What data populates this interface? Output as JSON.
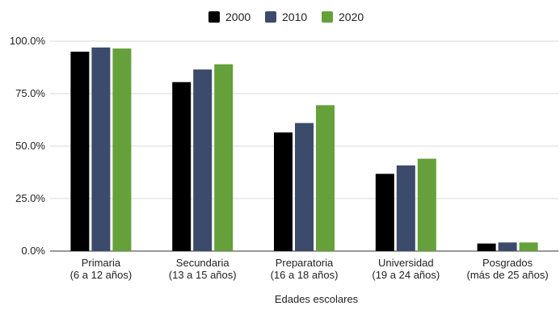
{
  "chart_data": {
    "type": "bar",
    "categories": [
      [
        "Primaria",
        "(6 a 12 años)"
      ],
      [
        "Secundaria",
        "(13 a 15 años)"
      ],
      [
        "Preparatoria",
        "(16 a 18 años)"
      ],
      [
        "Universidad",
        "(19 a 24 años)"
      ],
      [
        "Posgrados",
        "(más de 25 años)"
      ]
    ],
    "series": [
      {
        "name": "2000",
        "color": "#000000",
        "values": [
          95.0,
          80.5,
          56.5,
          36.8,
          3.6
        ]
      },
      {
        "name": "2010",
        "color": "#3c4a6b",
        "values": [
          97.0,
          86.5,
          61.0,
          40.8,
          4.1
        ]
      },
      {
        "name": "2020",
        "color": "#65a03a",
        "values": [
          96.5,
          89.0,
          69.5,
          44.0,
          4.1
        ]
      }
    ],
    "xlabel": "Edades escolares",
    "ylabel": "",
    "ylim": [
      0,
      100
    ],
    "yticks": [
      "0.0%",
      "25.0%",
      "50.0%",
      "75.0%",
      "100.0%"
    ],
    "legend_position": "top-center",
    "grid": true
  }
}
